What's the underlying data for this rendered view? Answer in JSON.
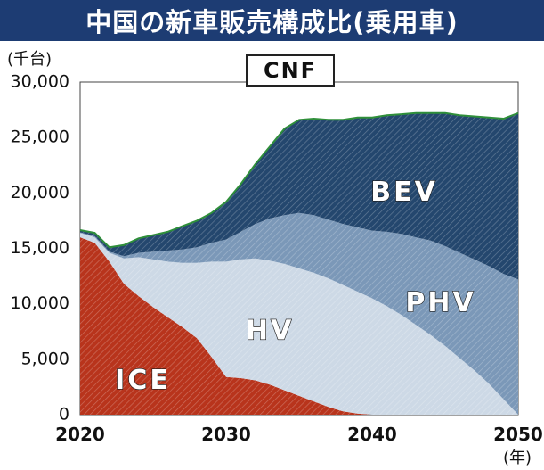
{
  "chart_data": {
    "type": "area",
    "stacked": true,
    "title": "中国の新車販売構成比(乗用車)",
    "subtitle": "CNF",
    "ylabel": "(千台)",
    "xlabel": "(年)",
    "ylim": [
      0,
      30000
    ],
    "xlim": [
      2020,
      2050
    ],
    "y_ticks": [
      "0",
      "5,000",
      "10,000",
      "15,000",
      "20,000",
      "25,000",
      "30,000"
    ],
    "x_ticks": [
      "2020",
      "2030",
      "2040",
      "2050"
    ],
    "grid": false,
    "x": [
      2020,
      2021,
      2022,
      2023,
      2024,
      2025,
      2026,
      2027,
      2028,
      2029,
      2030,
      2031,
      2032,
      2033,
      2034,
      2035,
      2036,
      2037,
      2038,
      2039,
      2040,
      2041,
      2042,
      2043,
      2044,
      2045,
      2046,
      2047,
      2048,
      2049,
      2050
    ],
    "series": [
      {
        "name": "ICE",
        "color": "#b8341c",
        "values": [
          16000,
          15500,
          13800,
          11800,
          10700,
          9700,
          8800,
          7900,
          6900,
          5200,
          3400,
          3300,
          3100,
          2700,
          2200,
          1700,
          1200,
          700,
          300,
          100,
          0,
          0,
          0,
          0,
          0,
          0,
          0,
          0,
          0,
          0,
          0
        ]
      },
      {
        "name": "HV",
        "color": "#cdd9e6",
        "values": [
          400,
          500,
          800,
          2300,
          3500,
          4300,
          5000,
          5800,
          6800,
          8600,
          10400,
          10700,
          11000,
          11200,
          11400,
          11500,
          11600,
          11600,
          11400,
          11000,
          10500,
          9800,
          9000,
          8100,
          7200,
          6200,
          5100,
          4000,
          2800,
          1400,
          0
        ]
      },
      {
        "name": "PHV",
        "color": "#7b98b8",
        "values": [
          50,
          100,
          100,
          200,
          400,
          700,
          1000,
          1200,
          1400,
          1700,
          2000,
          2500,
          3100,
          3800,
          4400,
          5000,
          5200,
          5300,
          5500,
          5800,
          6100,
          6700,
          7300,
          7900,
          8500,
          9000,
          9500,
          10000,
          10600,
          11300,
          12200
        ]
      },
      {
        "name": "BEV",
        "color": "#24476e",
        "values": [
          200,
          300,
          400,
          1000,
          1300,
          1500,
          1700,
          2100,
          2400,
          2700,
          3400,
          4300,
          5400,
          6500,
          7800,
          8400,
          8700,
          9000,
          9400,
          9900,
          10200,
          10500,
          10800,
          11200,
          11500,
          12000,
          12400,
          12900,
          13400,
          14000,
          15000
        ]
      }
    ]
  }
}
